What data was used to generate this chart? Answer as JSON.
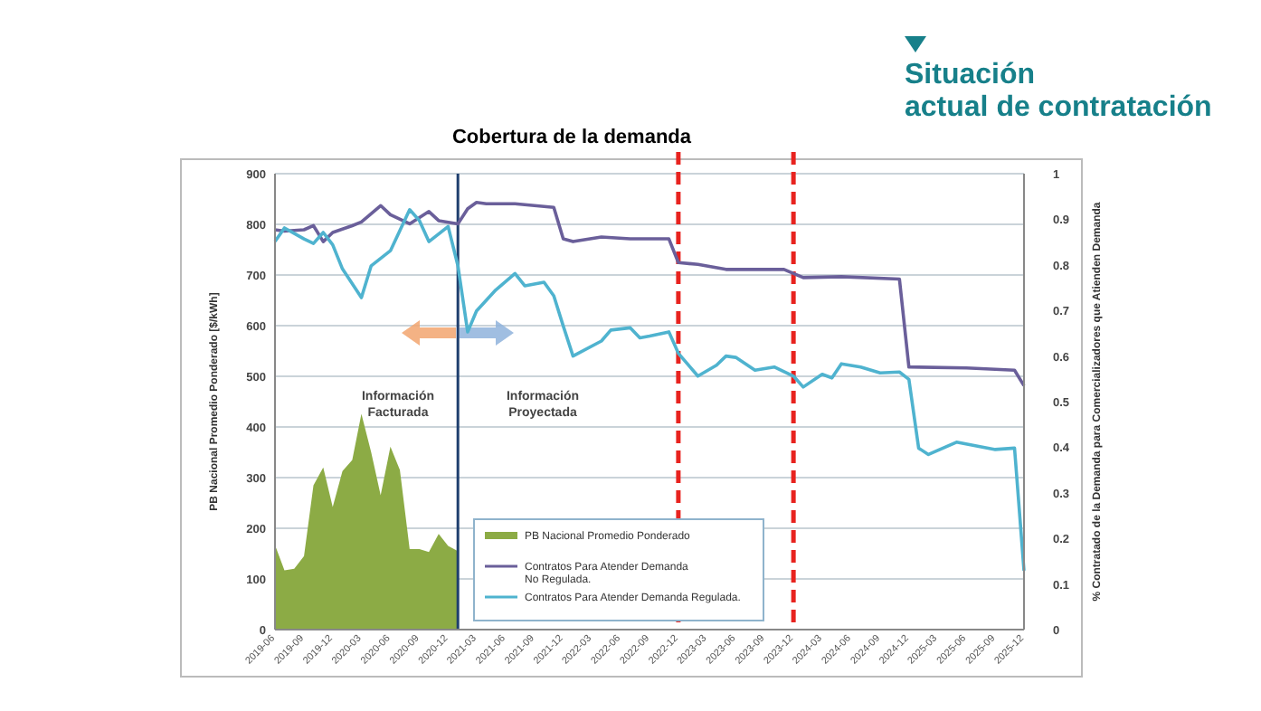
{
  "chart_data": {
    "type": "line",
    "title": "Cobertura de la demanda",
    "subtitle": "Situación actual de contratación",
    "ylabel": "PB Nacional Promedio Ponderado [$/kWh]",
    "y2label": "% Contratado de la Demanda para Comercializadores que Atienden Demanda",
    "annotations": [
      "Información Facturada",
      "Información Proyectada"
    ],
    "xlim": [
      "2019-06",
      "2025-12"
    ],
    "xticks": [
      "2019-06",
      "2019-09",
      "2019-12",
      "2020-03",
      "2020-06",
      "2020-09",
      "2020-12",
      "2021-03",
      "2021-06",
      "2021-09",
      "2021-12",
      "2022-03",
      "2022-06",
      "2022-09",
      "2022-12",
      "2023-03",
      "2023-06",
      "2023-09",
      "2023-12",
      "2024-03",
      "2024-06",
      "2024-09",
      "2024-12",
      "2025-03",
      "2025-06",
      "2025-09",
      "2025-12"
    ],
    "ylim": [
      0,
      900
    ],
    "yticks": [
      0,
      100,
      200,
      300,
      400,
      500,
      600,
      700,
      800,
      900
    ],
    "y2lim": [
      0,
      1
    ],
    "y2ticks": [
      0,
      0.1,
      0.2,
      0.3,
      0.4,
      0.5,
      0.6,
      0.7,
      0.8,
      0.9,
      1
    ],
    "grid": "y",
    "legend": "bottom",
    "ref_lines": [
      {
        "axis": "x",
        "value": "2021-01",
        "color": "#1f3f6e",
        "line_style": "solid"
      },
      {
        "axis": "x",
        "value": "2022-12",
        "color": "#e8231f",
        "line_style": "dashed"
      },
      {
        "axis": "x",
        "value": "2023-12",
        "color": "#e8231f",
        "line_style": "dashed"
      }
    ],
    "series": [
      {
        "name": "PB Nacional Promedio Ponderado",
        "type": "area",
        "color": "#8cab45",
        "x": [
          "2019-06",
          "2019-07",
          "2019-08",
          "2019-09",
          "2019-10",
          "2019-11",
          "2019-12",
          "2020-01",
          "2020-02",
          "2020-03",
          "2020-04",
          "2020-05",
          "2020-06",
          "2020-07",
          "2020-08",
          "2020-09",
          "2020-10",
          "2020-11",
          "2020-12",
          "2021-01"
        ],
        "values": [
          167,
          117,
          120,
          145,
          285,
          320,
          242,
          313,
          335,
          426,
          350,
          265,
          361,
          315,
          159,
          159,
          153,
          189,
          165,
          155
        ]
      },
      {
        "name": "Contratos Para Atender Demanda  No Regulada.",
        "axis": "y2",
        "color": "#6a5f9a",
        "x": [
          "2019-06",
          "2019-07",
          "2019-09",
          "2019-10",
          "2019-11",
          "2019-12",
          "2020-02",
          "2020-03",
          "2020-05",
          "2020-06",
          "2020-08",
          "2020-10",
          "2020-11",
          "2021-01",
          "2021-02",
          "2021-03",
          "2021-04",
          "2021-07",
          "2021-11",
          "2021-12",
          "2022-01",
          "2022-04",
          "2022-07",
          "2022-11",
          "2022-12",
          "2023-02",
          "2023-05",
          "2023-11",
          "2024-01",
          "2024-05",
          "2024-11",
          "2024-12",
          "2025-06",
          "2025-11",
          "2025-12"
        ],
        "values": [
          0.877,
          0.874,
          0.877,
          0.886,
          0.851,
          0.871,
          0.886,
          0.894,
          0.93,
          0.91,
          0.89,
          0.917,
          0.897,
          0.89,
          0.923,
          0.937,
          0.934,
          0.934,
          0.926,
          0.857,
          0.851,
          0.861,
          0.857,
          0.857,
          0.805,
          0.801,
          0.79,
          0.79,
          0.772,
          0.774,
          0.769,
          0.576,
          0.574,
          0.569,
          0.535
        ]
      },
      {
        "name": "Contratos Para Atender Demanda Regulada.",
        "axis": "y2",
        "color": "#4fb3cf",
        "x": [
          "2019-06",
          "2019-07",
          "2019-09",
          "2019-10",
          "2019-11",
          "2019-12",
          "2020-01",
          "2020-03",
          "2020-04",
          "2020-06",
          "2020-08",
          "2020-09",
          "2020-10",
          "2020-12",
          "2021-01",
          "2021-02",
          "2021-03",
          "2021-05",
          "2021-07",
          "2021-08",
          "2021-10",
          "2021-11",
          "2021-12",
          "2022-01",
          "2022-04",
          "2022-05",
          "2022-07",
          "2022-08",
          "2022-09",
          "2022-11",
          "2022-12",
          "2023-02",
          "2023-04",
          "2023-05",
          "2023-06",
          "2023-08",
          "2023-10",
          "2023-12",
          "2024-01",
          "2024-03",
          "2024-04",
          "2024-05",
          "2024-07",
          "2024-09",
          "2024-11",
          "2024-12",
          "2025-01",
          "2025-02",
          "2025-05",
          "2025-09",
          "2025-11",
          "2025-12"
        ],
        "values": [
          0.851,
          0.881,
          0.857,
          0.847,
          0.871,
          0.844,
          0.791,
          0.728,
          0.798,
          0.831,
          0.921,
          0.897,
          0.851,
          0.884,
          0.798,
          0.653,
          0.699,
          0.745,
          0.781,
          0.754,
          0.762,
          0.732,
          0.666,
          0.6,
          0.633,
          0.657,
          0.662,
          0.64,
          0.644,
          0.653,
          0.606,
          0.556,
          0.58,
          0.6,
          0.597,
          0.569,
          0.576,
          0.556,
          0.532,
          0.56,
          0.552,
          0.583,
          0.576,
          0.563,
          0.565,
          0.549,
          0.398,
          0.384,
          0.411,
          0.395,
          0.398,
          0.129
        ]
      }
    ]
  }
}
